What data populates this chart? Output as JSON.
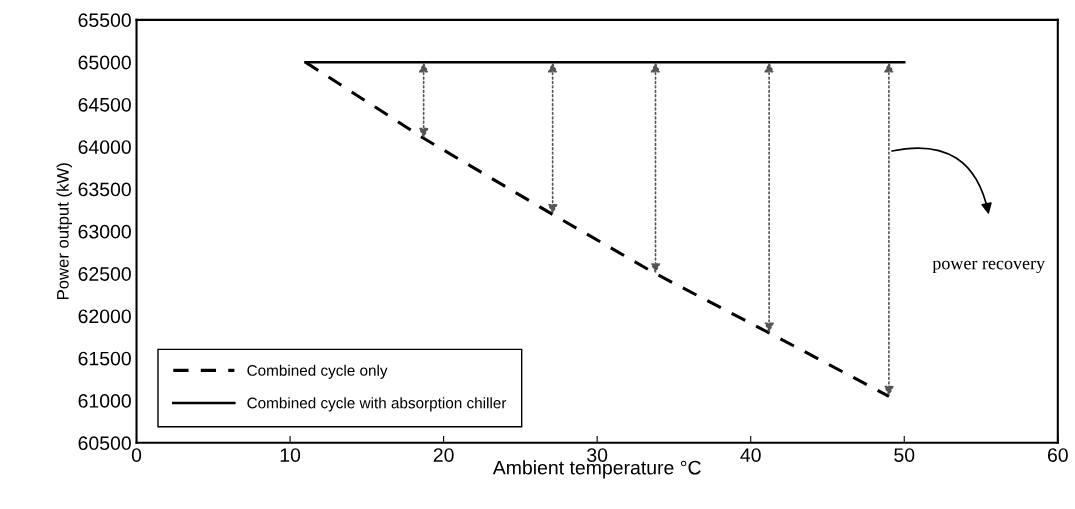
{
  "chart_data": {
    "type": "line",
    "xlabel": "Ambient temperature °C",
    "ylabel": "Power output (kW)",
    "series": [
      {
        "name": "Combined cycle only",
        "color": "#000000",
        "line_style": "dashed",
        "x": [
          11,
          18.7,
          27.1,
          33.8,
          41.2,
          49
        ],
        "values": [
          65000,
          64100,
          63200,
          62500,
          61800,
          61050
        ]
      },
      {
        "name": "Combined cycle with absorption chiller",
        "color": "#000000",
        "line_style": "solid",
        "x": [
          11,
          50
        ],
        "values": [
          65000,
          65000
        ]
      }
    ],
    "annotations": [
      "power recovery"
    ],
    "xlim": [
      0,
      60
    ],
    "xticks": [
      0,
      10,
      20,
      30,
      40,
      50,
      60
    ],
    "ylim": [
      60500,
      65500
    ],
    "yticks": [
      60500,
      61000,
      61500,
      62000,
      62500,
      63000,
      63500,
      64000,
      64500,
      65000,
      65500
    ],
    "grid": false,
    "legend": "bottom left",
    "marker": "none"
  }
}
